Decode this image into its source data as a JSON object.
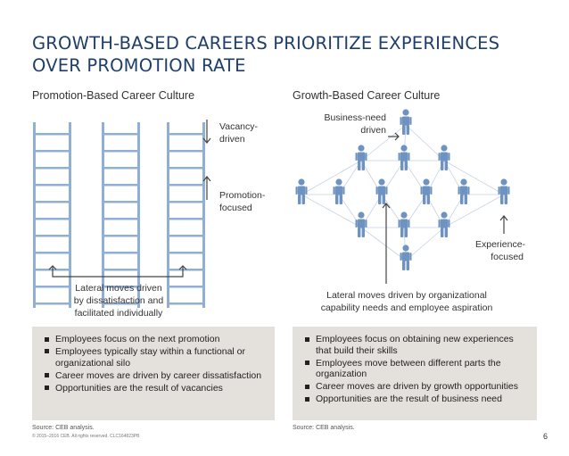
{
  "title_line1": "GROWTH-BASED CAREERS PRIORITIZE EXPERIENCES",
  "title_line2": "OVER PROMOTION RATE",
  "left": {
    "heading": "Promotion-Based Career Culture",
    "vacancy_line1": "Vacancy-",
    "vacancy_line2": "driven",
    "promotion_line1": "Promotion-",
    "promotion_line2": "focused",
    "lateral_line1": "Lateral moves driven",
    "lateral_line2": "by dissatisfaction and",
    "lateral_line3": "facilitated individually",
    "bullets": [
      "Employees focus on the next promotion",
      "Employees typically stay within a functional or organizational silo",
      "Career moves are driven by career dissatisfaction",
      "Opportunities are the result of vacancies"
    ],
    "source": "Source: CEB analysis."
  },
  "right": {
    "heading": "Growth-Based Career Culture",
    "business_line1": "Business-need",
    "business_line2": "driven",
    "experience_line1": "Experience-",
    "experience_line2": "focused",
    "lateral_line1": "Lateral moves driven by organizational",
    "lateral_line2": "capability needs and employee aspiration",
    "bullets": [
      "Employees focus on obtaining new experiences that build their skills",
      "Employees move between different parts the organization",
      "Career moves are driven by growth opportunities",
      "Opportunities are the result of business need"
    ],
    "source": "Source: CEB analysis."
  },
  "copyright": "© 2015–2016 CEB. All rights reserved. CLC164823PB",
  "page_number": "6",
  "colors": {
    "title": "#1f3f6a",
    "ladder": "#8fafd6",
    "ladder_dark": "#6f93c0",
    "person": "#6f93c0",
    "box": "#e4e1dc"
  }
}
